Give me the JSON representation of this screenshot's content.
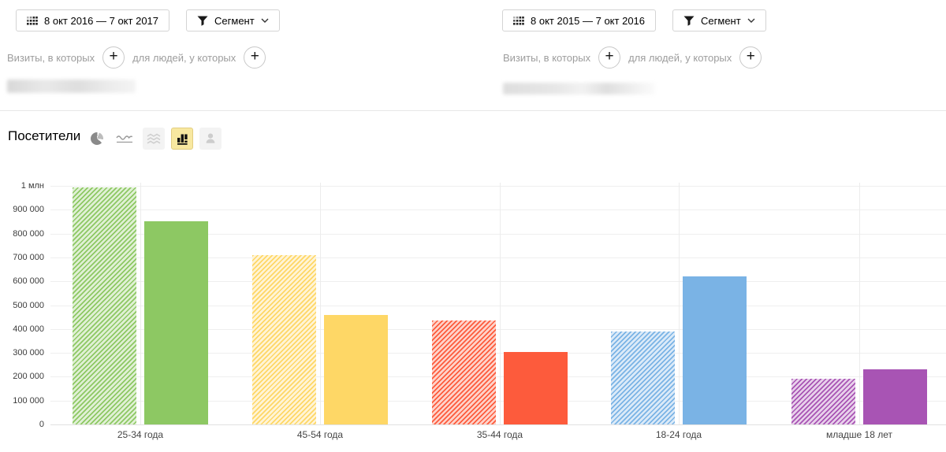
{
  "panels": [
    {
      "date_range": "8 окт 2016 — 7 окт 2017",
      "segment_label": "Сегмент",
      "visits_label": "Визиты, в которых",
      "people_label": "для людей, у которых"
    },
    {
      "date_range": "8 окт 2015 — 7 окт 2016",
      "segment_label": "Сегмент",
      "visits_label": "Визиты, в которых",
      "people_label": "для людей, у которых"
    }
  ],
  "plus_symbol": "+",
  "section": {
    "title": "Посетители"
  },
  "toolbar": {
    "icons": [
      {
        "name": "pie-chart-icon",
        "state": "normal"
      },
      {
        "name": "line-chart-icon",
        "state": "normal"
      },
      {
        "name": "stacked-area-chart-icon",
        "state": "disabled"
      },
      {
        "name": "bar-chart-icon",
        "state": "selected"
      },
      {
        "name": "person-pin-icon",
        "state": "disabled"
      }
    ],
    "selected_bg": "#f8e8a0",
    "selected_border": "#e2cd80"
  },
  "chart_data": {
    "type": "bar",
    "title": "Посетители",
    "categories": [
      "25-34 года",
      "45-54 года",
      "35-44 года",
      "18-24 года",
      "младше 18 лет"
    ],
    "series": [
      {
        "name": "8 окт 2016 — 7 окт 2017",
        "style": "hatched",
        "values": [
          995000,
          710000,
          435000,
          390000,
          190000
        ]
      },
      {
        "name": "8 окт 2015 — 7 окт 2016",
        "style": "solid",
        "values": [
          850000,
          460000,
          305000,
          620000,
          230000
        ]
      }
    ],
    "category_colors": [
      "#8dc863",
      "#fed766",
      "#fd5b3c",
      "#7ab3e5",
      "#a854b4"
    ],
    "ylim": [
      0,
      1000000
    ],
    "ytick_step": 100000,
    "ytick_labels": [
      "0",
      "100 000",
      "200 000",
      "300 000",
      "400 000",
      "500 000",
      "600 000",
      "700 000",
      "800 000",
      "900 000",
      "1 млн"
    ],
    "grid": true,
    "legend": "none",
    "xlabel": "",
    "ylabel": ""
  }
}
